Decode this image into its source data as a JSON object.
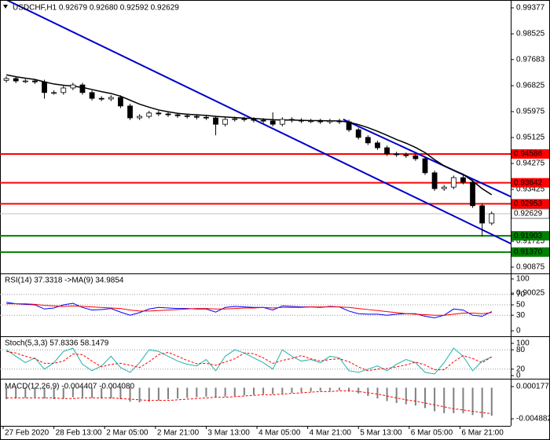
{
  "chart_data": [
    {
      "type": "candlestick",
      "title": "USDCHF,H1 0.92679 0.92680 0.92592 0.92629",
      "x": [
        1,
        4,
        7,
        10,
        13,
        16,
        19,
        22,
        25,
        28,
        31,
        34,
        37,
        40,
        43,
        46,
        49,
        52,
        55,
        58,
        61,
        64,
        67,
        70,
        73,
        76,
        79,
        82,
        85,
        88,
        91,
        94,
        97,
        100,
        103,
        106,
        109,
        112,
        115,
        118,
        121,
        124,
        127,
        130,
        133,
        136,
        139,
        142,
        145,
        148,
        151,
        154
      ],
      "open": [
        0.97,
        0.9706,
        0.9698,
        0.9698,
        0.9695,
        0.966,
        0.966,
        0.9675,
        0.9685,
        0.966,
        0.9641,
        0.9639,
        0.9644,
        0.9616,
        0.9577,
        0.9582,
        0.9593,
        0.959,
        0.9587,
        0.9584,
        0.9582,
        0.9579,
        0.9577,
        0.9556,
        0.9572,
        0.9574,
        0.9572,
        0.9569,
        0.9567,
        0.9556,
        0.9572,
        0.9569,
        0.9567,
        0.9567,
        0.9564,
        0.9567,
        0.9564,
        0.9538,
        0.9513,
        0.9495,
        0.9479,
        0.9459,
        0.9456,
        0.9453,
        0.9443,
        0.9397,
        0.9345,
        0.935,
        0.9381,
        0.9366,
        0.9289,
        0.9232
      ],
      "high": [
        0.9713,
        0.9713,
        0.9705,
        0.9705,
        0.9702,
        0.9667,
        0.9682,
        0.9692,
        0.9692,
        0.9667,
        0.9648,
        0.9651,
        0.9651,
        0.9623,
        0.9589,
        0.96,
        0.96,
        0.9597,
        0.9594,
        0.9591,
        0.9589,
        0.9586,
        0.9584,
        0.9579,
        0.9581,
        0.9581,
        0.9579,
        0.9576,
        0.9595,
        0.9579,
        0.9579,
        0.9576,
        0.9574,
        0.9574,
        0.9574,
        0.9574,
        0.9571,
        0.9545,
        0.952,
        0.9502,
        0.9486,
        0.9466,
        0.9463,
        0.946,
        0.945,
        0.9404,
        0.9357,
        0.9388,
        0.9388,
        0.9373,
        0.9296,
        0.927
      ],
      "low": [
        0.9693,
        0.9691,
        0.9691,
        0.9688,
        0.964,
        0.9653,
        0.9653,
        0.9668,
        0.9653,
        0.9634,
        0.9632,
        0.9632,
        0.9609,
        0.957,
        0.957,
        0.9575,
        0.9583,
        0.958,
        0.9577,
        0.9575,
        0.9572,
        0.957,
        0.952,
        0.9549,
        0.9565,
        0.9565,
        0.9562,
        0.956,
        0.9549,
        0.9549,
        0.9562,
        0.956,
        0.956,
        0.9557,
        0.9557,
        0.9557,
        0.9531,
        0.9506,
        0.9488,
        0.9472,
        0.9452,
        0.9449,
        0.9446,
        0.9436,
        0.939,
        0.9338,
        0.9338,
        0.9343,
        0.9359,
        0.9282,
        0.919,
        0.9225
      ],
      "close": [
        0.9706,
        0.9698,
        0.9698,
        0.9695,
        0.966,
        0.966,
        0.9675,
        0.9685,
        0.966,
        0.9641,
        0.9639,
        0.9644,
        0.9616,
        0.9577,
        0.9582,
        0.9593,
        0.959,
        0.9587,
        0.9584,
        0.9582,
        0.9579,
        0.9577,
        0.9556,
        0.9572,
        0.9574,
        0.9572,
        0.9569,
        0.9567,
        0.9556,
        0.9572,
        0.9569,
        0.9567,
        0.9567,
        0.9564,
        0.9567,
        0.9564,
        0.9538,
        0.9513,
        0.9495,
        0.9479,
        0.9459,
        0.9456,
        0.9453,
        0.9443,
        0.9397,
        0.9345,
        0.935,
        0.9381,
        0.9366,
        0.9289,
        0.9232,
        0.92629
      ],
      "ma": {
        "color": "#000000",
        "values": [
          0.9718,
          0.9712,
          0.9707,
          0.9703,
          0.9695,
          0.9688,
          0.9684,
          0.9681,
          0.9677,
          0.967,
          0.9663,
          0.9657,
          0.9648,
          0.9635,
          0.9622,
          0.9612,
          0.9603,
          0.9597,
          0.9592,
          0.9589,
          0.9587,
          0.9585,
          0.9582,
          0.958,
          0.9578,
          0.9576,
          0.9575,
          0.9573,
          0.9571,
          0.957,
          0.957,
          0.9569,
          0.9568,
          0.9568,
          0.9567,
          0.9567,
          0.9563,
          0.9555,
          0.9545,
          0.9533,
          0.952,
          0.9506,
          0.9494,
          0.948,
          0.9463,
          0.944,
          0.942,
          0.9405,
          0.9392,
          0.937,
          0.9345,
          0.9325
        ]
      },
      "trendlines": [
        {
          "color": "#0000cc",
          "x": [
            0,
            160
          ],
          "values": [
            0.9969,
            0.9165
          ]
        },
        {
          "color": "#0000cc",
          "x": [
            107.2,
            160
          ],
          "values": [
            0.9572,
            0.9319
          ]
        }
      ],
      "levels": [
        0.94586,
        0.93642,
        0.92953,
        0.91903,
        {
          "value": 0.9137,
          "label": "0.91370"
        }
      ],
      "level_colors": [
        "#ff0000",
        "#ff0000",
        "#ff0000",
        "#008000",
        "#008000"
      ],
      "last_price": 0.92629,
      "xlim": [
        -1,
        160
      ],
      "ylim": [
        0.9067,
        0.99583
      ],
      "yticks": [
        0.99377,
        0.98525,
        0.97683,
        0.96825,
        0.95975,
        0.95125,
        0.94275,
        0.93425,
        0.91725,
        0.90875,
        0.90025
      ]
    },
    {
      "type": "line",
      "title": "RSI(14) 37.3318 ->MA(9) 34.9854",
      "series": [
        {
          "color": "#0000ff",
          "style": "line",
          "values": [
            55,
            52,
            51,
            50,
            42,
            44,
            50,
            53,
            45,
            40,
            41,
            43,
            36,
            30,
            35,
            42,
            45,
            44,
            43,
            43,
            42,
            42,
            36,
            45,
            47,
            46,
            45,
            45,
            40,
            48,
            47,
            46,
            46,
            45,
            47,
            46,
            38,
            33,
            32,
            32,
            30,
            32,
            33,
            33,
            28,
            25,
            30,
            42,
            40,
            30,
            28,
            37
          ]
        },
        {
          "color": "#ff0000",
          "style": "line",
          "values": [
            52,
            52,
            52,
            51,
            49,
            48,
            47,
            48,
            47,
            46,
            45,
            44,
            43,
            40,
            38,
            38,
            39,
            40,
            41,
            42,
            43,
            43,
            42,
            42,
            43,
            44,
            44,
            45,
            44,
            45,
            45,
            45,
            46,
            46,
            46,
            46,
            45,
            43,
            41,
            39,
            37,
            35,
            33,
            32,
            31,
            30,
            30,
            32,
            34,
            34,
            33,
            35
          ]
        }
      ],
      "level_lines": [
        70,
        50,
        30
      ],
      "ylim": [
        0,
        100
      ],
      "yticks": [
        100,
        70,
        50,
        30,
        0
      ]
    },
    {
      "type": "line",
      "title": "Stoch(5,3,3) 57.8336 58.1479",
      "series": [
        {
          "color": "#20b2aa",
          "style": "line",
          "values": [
            80,
            60,
            40,
            55,
            20,
            40,
            75,
            85,
            35,
            15,
            30,
            60,
            25,
            10,
            40,
            80,
            75,
            60,
            45,
            35,
            30,
            50,
            15,
            60,
            80,
            70,
            55,
            40,
            20,
            80,
            60,
            45,
            50,
            40,
            60,
            55,
            15,
            10,
            20,
            30,
            15,
            35,
            50,
            40,
            10,
            5,
            40,
            85,
            60,
            15,
            45,
            58
          ]
        },
        {
          "color": "#ff0000",
          "style": "dashed",
          "values": [
            75,
            70,
            60,
            52,
            38,
            38,
            45,
            67,
            65,
            45,
            27,
            35,
            38,
            32,
            25,
            43,
            65,
            72,
            60,
            47,
            37,
            38,
            32,
            42,
            52,
            70,
            68,
            55,
            38,
            47,
            53,
            62,
            52,
            45,
            50,
            52,
            43,
            27,
            15,
            20,
            22,
            27,
            33,
            42,
            33,
            18,
            18,
            43,
            62,
            53,
            40,
            58
          ]
        }
      ],
      "level_lines": [
        80,
        20
      ],
      "ylim": [
        0,
        100
      ],
      "yticks": [
        100,
        80,
        20,
        0
      ]
    },
    {
      "type": "line",
      "title": "MACD(12,26,9) -0.004407 -0.004080",
      "series": [
        {
          "color": "#808080",
          "style": "bar",
          "values": [
            -0.0018,
            -0.0017,
            -0.0016,
            -0.0015,
            -0.0017,
            -0.0018,
            -0.0017,
            -0.0015,
            -0.0015,
            -0.0016,
            -0.0017,
            -0.0017,
            -0.0018,
            -0.0022,
            -0.0023,
            -0.0022,
            -0.002,
            -0.0018,
            -0.0017,
            -0.0016,
            -0.0015,
            -0.0014,
            -0.0015,
            -0.0014,
            -0.0013,
            -0.0012,
            -0.0011,
            -0.001,
            -0.001,
            -0.0009,
            -0.0008,
            -0.0007,
            -0.0006,
            -0.0005,
            -0.0005,
            -0.0004,
            -0.0006,
            -0.0009,
            -0.0013,
            -0.0017,
            -0.0021,
            -0.0024,
            -0.0026,
            -0.0028,
            -0.0032,
            -0.0037,
            -0.004,
            -0.004,
            -0.004,
            -0.0043,
            -0.0047,
            -0.004407
          ]
        },
        {
          "color": "#ff0000",
          "style": "dashed",
          "values": [
            -0.0016,
            -0.0016,
            -0.0016,
            -0.0016,
            -0.0016,
            -0.0016,
            -0.0017,
            -0.0017,
            -0.0016,
            -0.0016,
            -0.0016,
            -0.0016,
            -0.0017,
            -0.0018,
            -0.0019,
            -0.002,
            -0.002,
            -0.002,
            -0.0019,
            -0.0018,
            -0.0017,
            -0.0016,
            -0.0015,
            -0.0015,
            -0.0014,
            -0.0013,
            -0.0012,
            -0.0011,
            -0.0011,
            -0.001,
            -0.0009,
            -0.0008,
            -0.0007,
            -0.0006,
            -0.0006,
            -0.0005,
            -0.0005,
            -0.0006,
            -0.0008,
            -0.001,
            -0.0013,
            -0.0016,
            -0.0019,
            -0.0021,
            -0.0024,
            -0.0027,
            -0.003,
            -0.0033,
            -0.0035,
            -0.0037,
            -0.0039,
            -0.00408
          ]
        }
      ],
      "ylim": [
        -0.00599,
        0.00092
      ],
      "yticks": [
        0.000177,
        -0.004882
      ],
      "xticks": [
        {
          "value": 0,
          "label": "27 Feb 2020"
        },
        {
          "value": 16,
          "label": "28 Feb 13:00"
        },
        {
          "value": 32,
          "label": "2 Mar 05:00"
        },
        {
          "value": 48,
          "label": "2 Mar 21:00"
        },
        {
          "value": 64,
          "label": "3 Mar 13:00"
        },
        {
          "value": 80,
          "label": "4 Mar 05:00"
        },
        {
          "value": 96,
          "label": "4 Mar 21:00"
        },
        {
          "value": 112,
          "label": "5 Mar 13:00"
        },
        {
          "value": 128,
          "label": "6 Mar 05:00"
        },
        {
          "value": 144,
          "label": "6 Mar 21:00"
        }
      ]
    }
  ]
}
